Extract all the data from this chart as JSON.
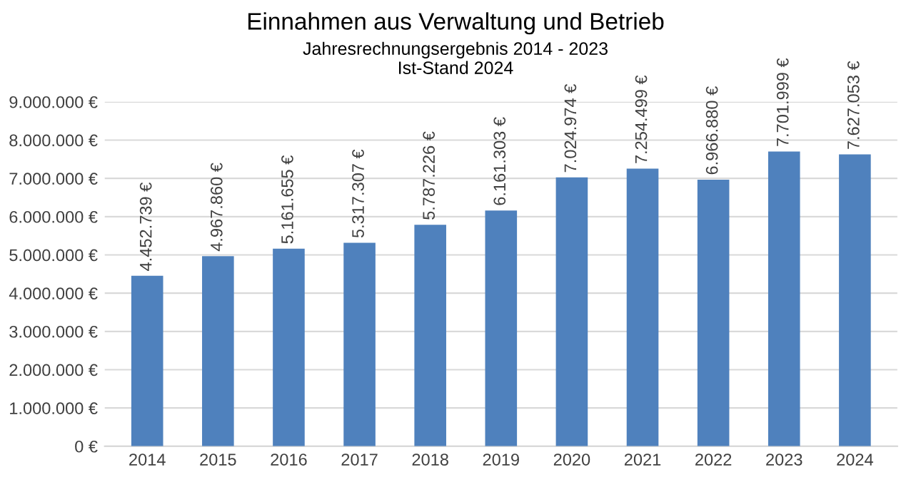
{
  "chart_data": {
    "type": "bar",
    "title": "Einnahmen aus Verwaltung und Betrieb",
    "subtitle": "Jahresrechnungsergebnis 2014 - 2023\nIst-Stand 2024",
    "categories": [
      "2014",
      "2015",
      "2016",
      "2017",
      "2018",
      "2019",
      "2020",
      "2021",
      "2022",
      "2023",
      "2024"
    ],
    "values": [
      4452739,
      4967860,
      5161655,
      5317307,
      5787226,
      6161303,
      7024974,
      7254499,
      6966880,
      7701999,
      7627053
    ],
    "value_labels": [
      "4.452.739 €",
      "4.967.860 €",
      "5.161.655 €",
      "5.317.307 €",
      "5.787.226 €",
      "6.161.303 €",
      "7.024.974 €",
      "7.254.499 €",
      "6.966.880 €",
      "7.701.999 €",
      "7.627.053 €"
    ],
    "color": "#4f81bd",
    "ylim": [
      0,
      9000000
    ],
    "yticks": [
      {
        "value": 0,
        "label": "0 €"
      },
      {
        "value": 1000000,
        "label": "1.000.000 €"
      },
      {
        "value": 2000000,
        "label": "2.000.000 €"
      },
      {
        "value": 3000000,
        "label": "3.000.000 €"
      },
      {
        "value": 4000000,
        "label": "4.000.000 €"
      },
      {
        "value": 5000000,
        "label": "5.000.000 €"
      },
      {
        "value": 6000000,
        "label": "6.000.000 €"
      },
      {
        "value": 7000000,
        "label": "7.000.000 €"
      },
      {
        "value": 8000000,
        "label": "8.000.000 €"
      },
      {
        "value": 9000000,
        "label": "9.000.000 €"
      }
    ],
    "grid": "y"
  }
}
